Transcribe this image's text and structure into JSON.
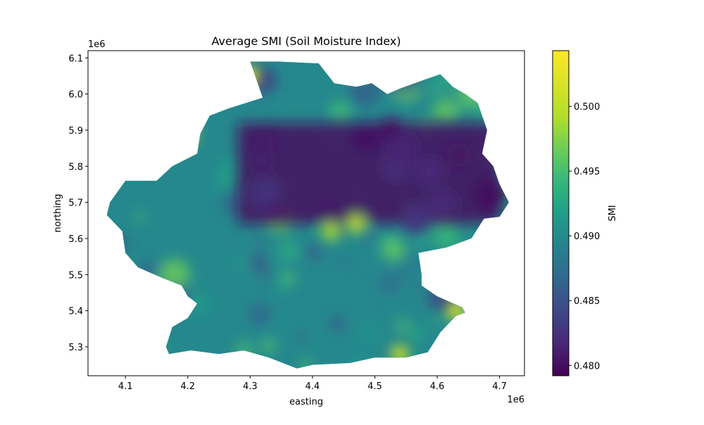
{
  "chart_data": {
    "type": "heatmap",
    "title": "Average SMI (Soil Moisture Index)",
    "xlabel": "easting",
    "ylabel": "northing",
    "x_offset_label": "1e6",
    "y_offset_label": "1e6",
    "x_ticks": [
      4.1,
      4.2,
      4.3,
      4.4,
      4.5,
      4.6,
      4.7
    ],
    "x_tick_labels": [
      "4.1",
      "4.2",
      "4.3",
      "4.4",
      "4.5",
      "4.6",
      "4.7"
    ],
    "y_ticks": [
      5.3,
      5.4,
      5.5,
      5.6,
      5.7,
      5.8,
      5.9,
      6.0,
      6.1
    ],
    "y_tick_labels": [
      "5.3",
      "5.4",
      "5.5",
      "5.6",
      "5.7",
      "5.8",
      "5.9",
      "6.0",
      "6.1"
    ],
    "xlim": [
      4.04,
      4.74
    ],
    "ylim": [
      5.22,
      6.12
    ],
    "colorbar": {
      "label": "SMI",
      "colormap": "viridis",
      "range": [
        0.4792,
        0.5043
      ],
      "ticks": [
        0.48,
        0.485,
        0.49,
        0.495,
        0.5
      ],
      "tick_labels": [
        "0.480",
        "0.485",
        "0.490",
        "0.495",
        "0.500"
      ]
    },
    "grid": false,
    "legend": "colorbar-right",
    "region_outline_northing_vs_easting": [
      [
        4.075,
        5.7
      ],
      [
        4.1,
        5.76
      ],
      [
        4.15,
        5.76
      ],
      [
        4.175,
        5.8
      ],
      [
        4.215,
        5.835
      ],
      [
        4.22,
        5.89
      ],
      [
        4.235,
        5.94
      ],
      [
        4.265,
        5.96
      ],
      [
        4.32,
        5.99
      ],
      [
        4.3,
        6.09
      ],
      [
        4.345,
        6.09
      ],
      [
        4.41,
        6.085
      ],
      [
        4.435,
        6.03
      ],
      [
        4.47,
        6.02
      ],
      [
        4.495,
        6.03
      ],
      [
        4.52,
        6.0
      ],
      [
        4.54,
        6.015
      ],
      [
        4.58,
        6.04
      ],
      [
        4.605,
        6.055
      ],
      [
        4.625,
        6.02
      ],
      [
        4.645,
        6.0
      ],
      [
        4.665,
        5.975
      ],
      [
        4.68,
        5.9
      ],
      [
        4.672,
        5.835
      ],
      [
        4.69,
        5.8
      ],
      [
        4.7,
        5.75
      ],
      [
        4.715,
        5.7
      ],
      [
        4.7,
        5.66
      ],
      [
        4.675,
        5.655
      ],
      [
        4.655,
        5.6
      ],
      [
        4.615,
        5.575
      ],
      [
        4.57,
        5.56
      ],
      [
        4.575,
        5.5
      ],
      [
        4.575,
        5.47
      ],
      [
        4.6,
        5.44
      ],
      [
        4.64,
        5.41
      ],
      [
        4.645,
        5.395
      ],
      [
        4.63,
        5.385
      ],
      [
        4.605,
        5.34
      ],
      [
        4.585,
        5.285
      ],
      [
        4.55,
        5.27
      ],
      [
        4.5,
        5.27
      ],
      [
        4.46,
        5.255
      ],
      [
        4.4,
        5.25
      ],
      [
        4.375,
        5.24
      ],
      [
        4.33,
        5.27
      ],
      [
        4.29,
        5.29
      ],
      [
        4.25,
        5.28
      ],
      [
        4.205,
        5.29
      ],
      [
        4.17,
        5.28
      ],
      [
        4.165,
        5.3
      ],
      [
        4.175,
        5.355
      ],
      [
        4.2,
        5.38
      ],
      [
        4.215,
        5.42
      ],
      [
        4.2,
        5.44
      ],
      [
        4.19,
        5.47
      ],
      [
        4.16,
        5.49
      ],
      [
        4.12,
        5.52
      ],
      [
        4.1,
        5.56
      ],
      [
        4.095,
        5.62
      ],
      [
        4.07,
        5.665
      ],
      [
        4.075,
        5.7
      ]
    ],
    "notable_smi_features": [
      {
        "description": "dry band",
        "x": [
          4.28,
          4.7
        ],
        "y": [
          5.64,
          5.92
        ],
        "smi": 0.48
      },
      {
        "description": "moist spot",
        "x": 4.2,
        "y": 5.89,
        "smi": 0.501
      },
      {
        "description": "moist spot",
        "x": 4.3,
        "y": 6.05,
        "smi": 0.503
      },
      {
        "description": "moist spot",
        "x": 4.63,
        "y": 5.4,
        "smi": 0.503
      },
      {
        "description": "moist spot",
        "x": 4.54,
        "y": 5.28,
        "smi": 0.501
      },
      {
        "description": "moist spot",
        "x": 4.47,
        "y": 5.64,
        "smi": 0.5
      },
      {
        "description": "moist spot",
        "x": 4.43,
        "y": 5.62,
        "smi": 0.499
      }
    ]
  }
}
